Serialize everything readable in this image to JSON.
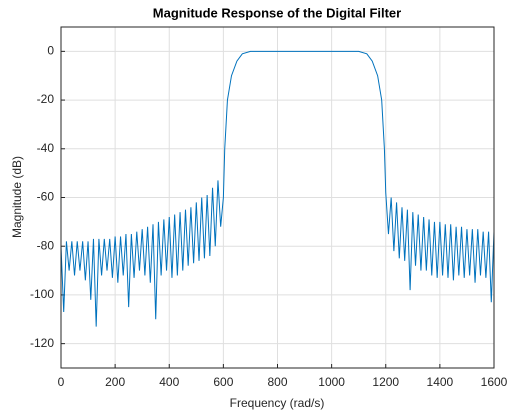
{
  "chart_data": {
    "type": "line",
    "title": "Magnitude Response of the Digital Filter",
    "xlabel": "Frequency (rad/s)",
    "ylabel": "Magnitude (dB)",
    "color": "#0072bd",
    "grid": true,
    "xlim": [
      0,
      1600
    ],
    "ylim": [
      -130,
      10
    ],
    "xticks": [
      0,
      200,
      400,
      600,
      800,
      1000,
      1200,
      1400,
      1600
    ],
    "yticks": [
      -120,
      -100,
      -80,
      -60,
      -40,
      -20,
      0
    ],
    "x": [
      0,
      10,
      20,
      30,
      40,
      50,
      60,
      70,
      80,
      90,
      100,
      110,
      120,
      130,
      140,
      150,
      160,
      170,
      180,
      190,
      200,
      210,
      220,
      230,
      240,
      250,
      260,
      270,
      280,
      290,
      300,
      310,
      320,
      330,
      340,
      350,
      360,
      370,
      380,
      390,
      400,
      410,
      420,
      430,
      440,
      450,
      460,
      470,
      480,
      490,
      500,
      510,
      520,
      530,
      540,
      550,
      560,
      570,
      580,
      590,
      600,
      605,
      615,
      630,
      650,
      670,
      700,
      800,
      900,
      1000,
      1100,
      1130,
      1150,
      1170,
      1185,
      1195,
      1200,
      1210,
      1220,
      1230,
      1240,
      1250,
      1260,
      1270,
      1280,
      1290,
      1300,
      1310,
      1320,
      1330,
      1340,
      1350,
      1360,
      1370,
      1380,
      1390,
      1400,
      1410,
      1420,
      1430,
      1440,
      1450,
      1460,
      1470,
      1480,
      1490,
      1500,
      1510,
      1520,
      1530,
      1540,
      1550,
      1560,
      1570,
      1580,
      1590,
      1600
    ],
    "values": [
      -80,
      -107,
      -78,
      -90,
      -78,
      -92,
      -78,
      -90,
      -78,
      -94,
      -78,
      -102,
      -77,
      -113,
      -77,
      -92,
      -77,
      -90,
      -77,
      -93,
      -76,
      -95,
      -76,
      -92,
      -75,
      -105,
      -75,
      -93,
      -74,
      -90,
      -73,
      -92,
      -72,
      -95,
      -71,
      -110,
      -70,
      -92,
      -69,
      -90,
      -68,
      -93,
      -67,
      -92,
      -66,
      -90,
      -65,
      -88,
      -64,
      -87,
      -62,
      -86,
      -60,
      -85,
      -59,
      -84,
      -56,
      -80,
      -53,
      -72,
      -60,
      -40,
      -20,
      -10,
      -4,
      -1,
      0,
      0,
      0,
      0,
      0,
      -1,
      -4,
      -10,
      -20,
      -40,
      -58,
      -75,
      -60,
      -82,
      -62,
      -85,
      -64,
      -86,
      -65,
      -98,
      -66,
      -88,
      -67,
      -90,
      -68,
      -90,
      -69,
      -92,
      -70,
      -93,
      -70,
      -92,
      -71,
      -93,
      -71,
      -94,
      -72,
      -92,
      -72,
      -93,
      -73,
      -92,
      -73,
      -95,
      -73,
      -92,
      -74,
      -93,
      -74,
      -103,
      -74
    ]
  }
}
